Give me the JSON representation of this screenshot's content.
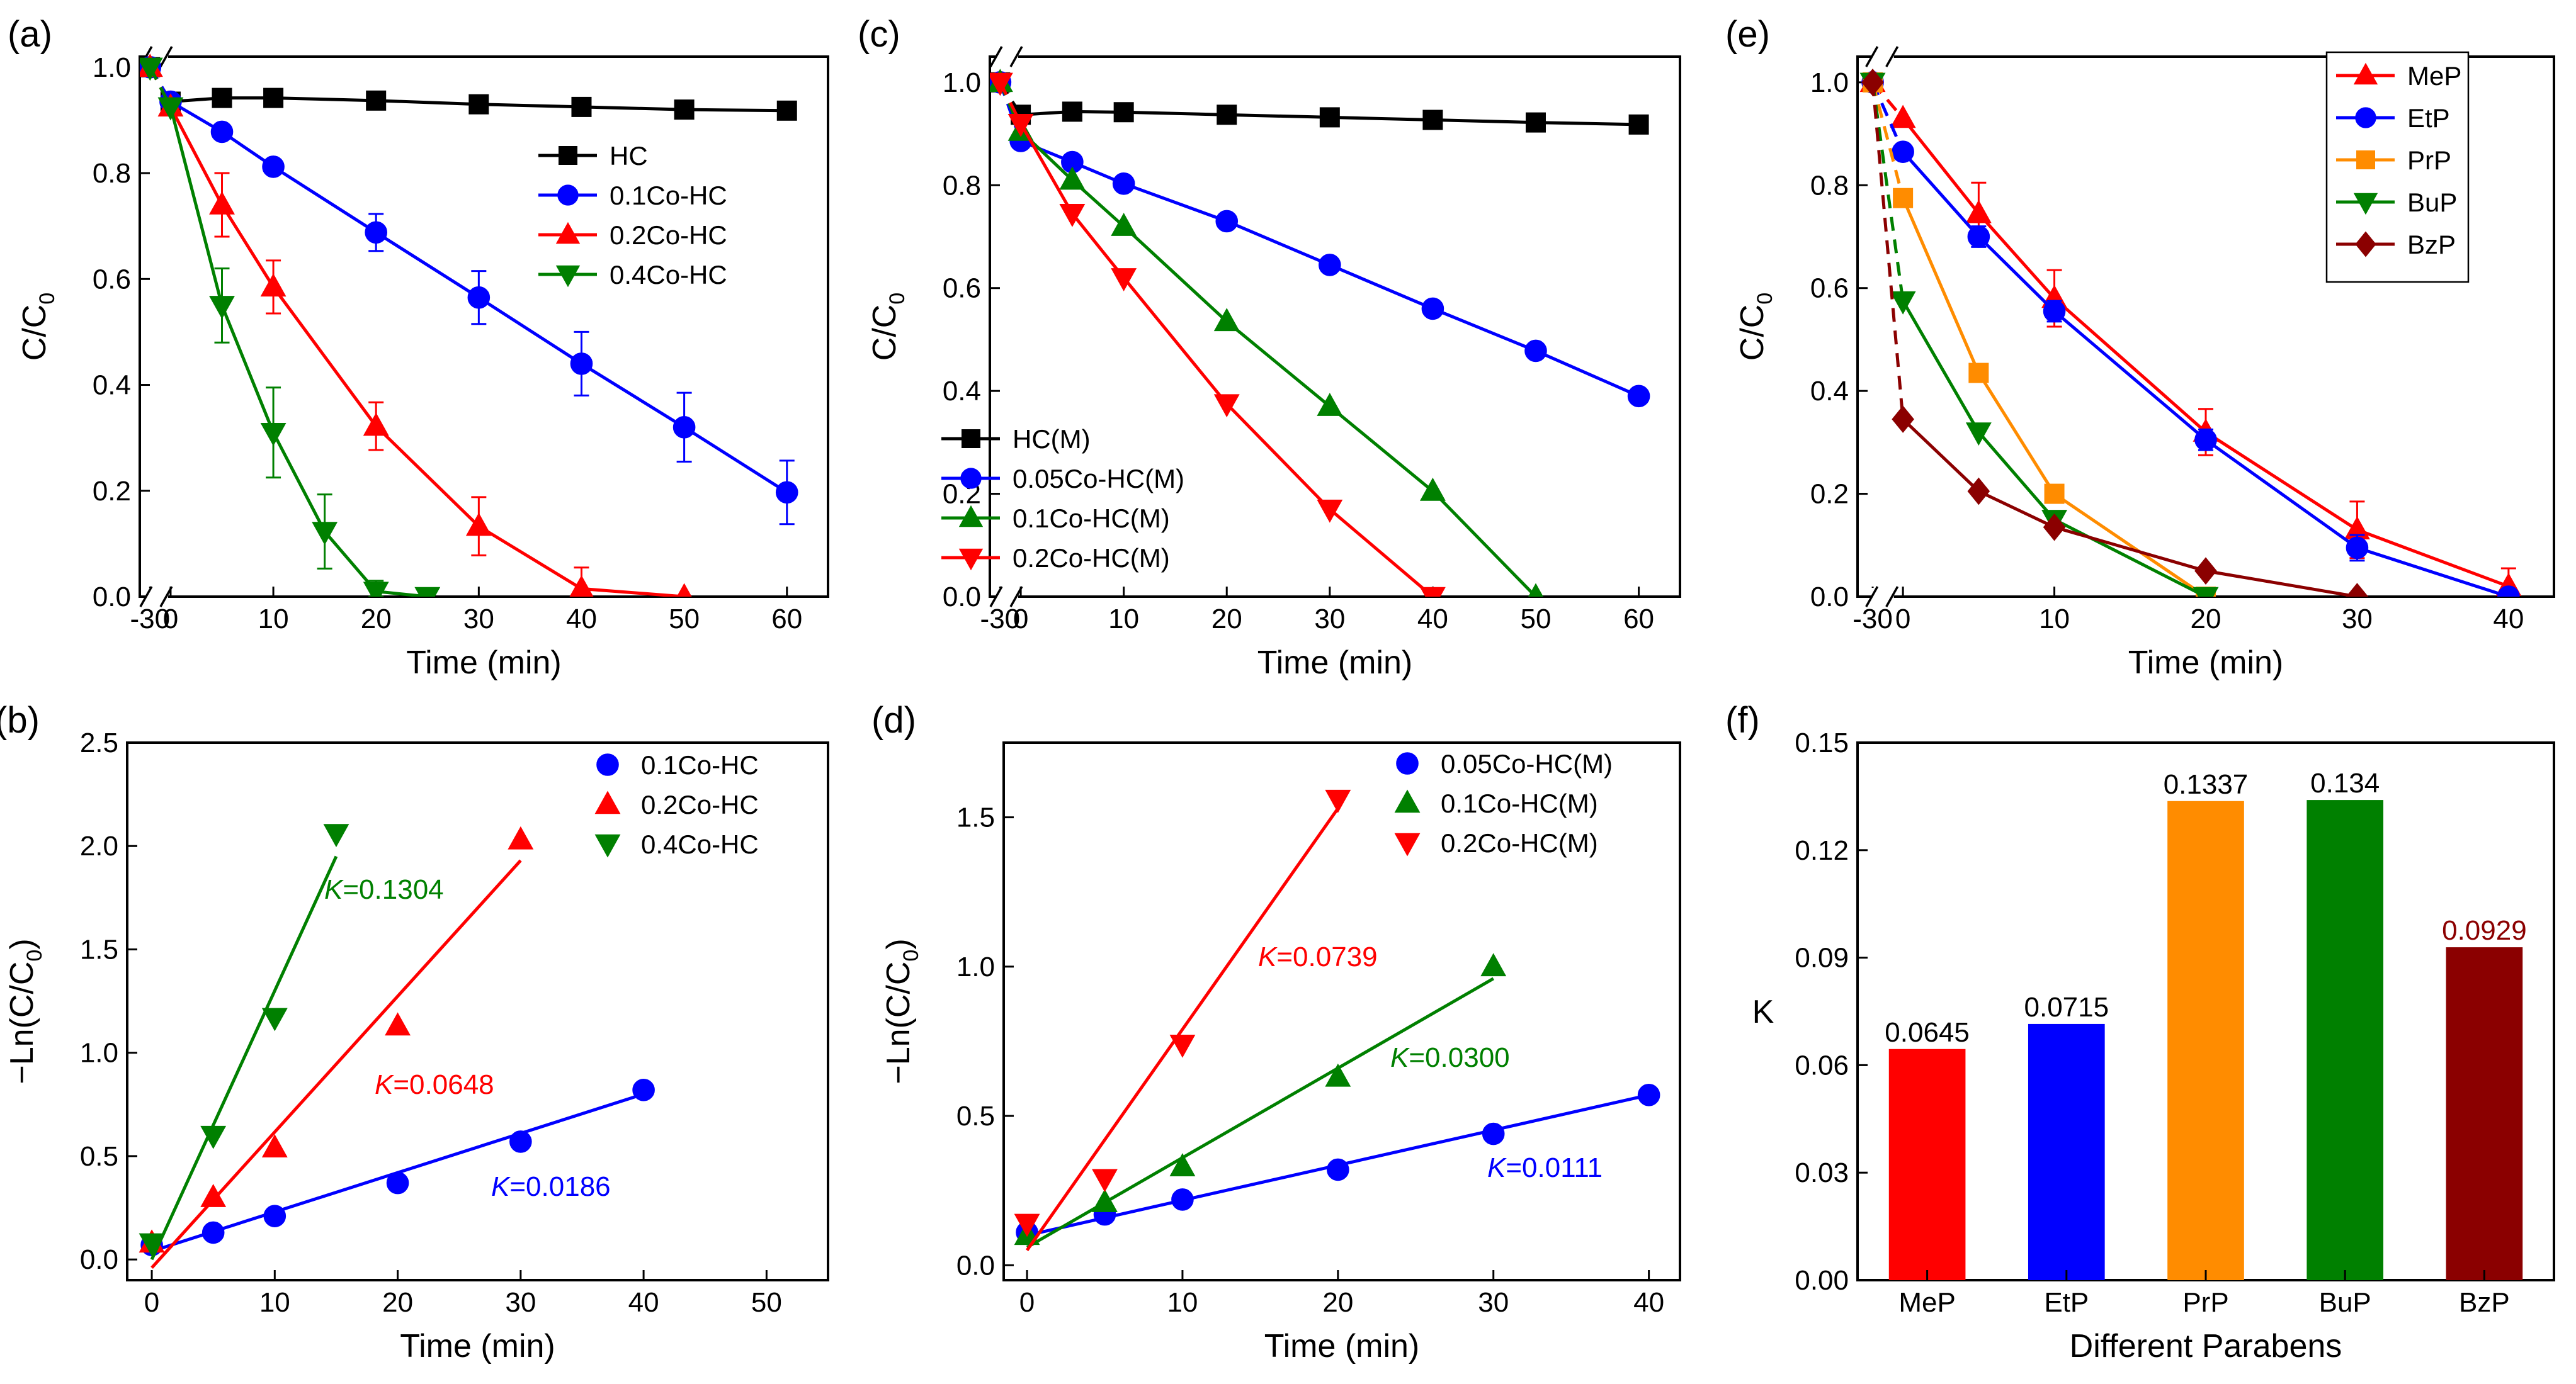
{
  "chart_data": [
    {
      "panel": "(a)",
      "type": "line",
      "xlabel": "Time (min)",
      "ylabel": "C/C",
      "ylabel_sub": "0",
      "xticks": [
        "-30",
        "0",
        "10",
        "20",
        "30",
        "40",
        "50",
        "60"
      ],
      "yticks": [
        "0.0",
        "0.2",
        "0.4",
        "0.6",
        "0.8",
        "1.0"
      ],
      "xlim": [
        -3,
        64
      ],
      "ylim": [
        0,
        1.02
      ],
      "legend": "upper-right",
      "series": [
        {
          "name": "HC",
          "color": "#000000",
          "marker": "square",
          "x": [
            -30,
            0,
            5,
            10,
            20,
            30,
            40,
            50,
            60
          ],
          "y": [
            1.0,
            0.935,
            0.942,
            0.942,
            0.937,
            0.93,
            0.925,
            0.92,
            0.918
          ]
        },
        {
          "name": "0.1Co-HC",
          "color": "#0000ff",
          "marker": "circle",
          "x": [
            -30,
            0,
            5,
            10,
            20,
            30,
            40,
            50,
            60
          ],
          "y": [
            1.0,
            0.935,
            0.878,
            0.812,
            0.688,
            0.565,
            0.44,
            0.32,
            0.197
          ],
          "err": [
            0,
            0,
            0,
            0,
            0.035,
            0.05,
            0.06,
            0.065,
            0.06
          ]
        },
        {
          "name": "0.2Co-HC",
          "color": "#ff0000",
          "marker": "triangle-up",
          "x": [
            -30,
            0,
            5,
            10,
            20,
            30,
            40,
            50
          ],
          "y": [
            1.0,
            0.925,
            0.74,
            0.585,
            0.322,
            0.133,
            0.015,
            0.0
          ],
          "err": [
            0,
            0,
            0.06,
            0.05,
            0.045,
            0.055,
            0.04,
            0
          ]
        },
        {
          "name": "0.4Co-HC",
          "color": "#008000",
          "marker": "triangle-down",
          "x": [
            -30,
            0,
            5,
            10,
            15,
            20,
            25
          ],
          "y": [
            1.0,
            0.925,
            0.55,
            0.31,
            0.123,
            0.01,
            0.0
          ],
          "err": [
            0,
            0,
            0.07,
            0.085,
            0.07,
            0.02,
            0
          ]
        }
      ]
    },
    {
      "panel": "(b)",
      "type": "scatter",
      "xlabel": "Time (min)",
      "ylabel": "−Ln(C/C",
      "ylabel_sub": "0",
      "ylabel_end": ")",
      "xticks": [
        "0",
        "10",
        "20",
        "30",
        "40",
        "50"
      ],
      "yticks": [
        "0.0",
        "0.5",
        "1.0",
        "1.5",
        "2.0",
        "2.5"
      ],
      "xlim": [
        -2,
        55
      ],
      "ylim": [
        -0.1,
        2.5
      ],
      "legend": "upper-right",
      "series": [
        {
          "name": "0.1Co-HC",
          "color": "#0000ff",
          "marker": "circle",
          "x": [
            0,
            5,
            10,
            20,
            30,
            40
          ],
          "y": [
            0.07,
            0.13,
            0.21,
            0.37,
            0.57,
            0.82
          ],
          "fit": [
            [
              0,
              0.04
            ],
            [
              40,
              0.8
            ]
          ],
          "label": "K=0.0186"
        },
        {
          "name": "0.2Co-HC",
          "color": "#ff0000",
          "marker": "triangle-up",
          "x": [
            0,
            5,
            10,
            20,
            30
          ],
          "y": [
            0.08,
            0.3,
            0.54,
            1.13,
            2.03
          ],
          "fit": [
            [
              0,
              -0.04
            ],
            [
              30,
              1.93
            ]
          ],
          "label": "K=0.0648"
        },
        {
          "name": "0.4Co-HC",
          "color": "#008000",
          "marker": "triangle-down",
          "x": [
            0,
            5,
            10,
            15
          ],
          "y": [
            0.08,
            0.6,
            1.17,
            2.06
          ],
          "fit": [
            [
              0,
              0.0
            ],
            [
              15,
              1.95
            ]
          ],
          "label": "K=0.1304"
        }
      ]
    },
    {
      "panel": "(c)",
      "type": "line",
      "xlabel": "Time (min)",
      "ylabel": "C/C",
      "ylabel_sub": "0",
      "xticks": [
        "-30",
        "0",
        "10",
        "20",
        "30",
        "40",
        "50",
        "60"
      ],
      "yticks": [
        "0.0",
        "0.2",
        "0.4",
        "0.6",
        "0.8",
        "1.0"
      ],
      "xlim": [
        -3,
        64
      ],
      "ylim": [
        0,
        1.05
      ],
      "legend": "lower-left",
      "series": [
        {
          "name": "HC(M)",
          "color": "#000000",
          "marker": "square",
          "x": [
            -30,
            0,
            5,
            10,
            20,
            30,
            40,
            50,
            60
          ],
          "y": [
            1.0,
            0.937,
            0.943,
            0.942,
            0.937,
            0.932,
            0.927,
            0.922,
            0.918
          ]
        },
        {
          "name": "0.05Co-HC(M)",
          "color": "#0000ff",
          "marker": "circle",
          "x": [
            -30,
            0,
            5,
            10,
            20,
            30,
            40,
            50,
            60
          ],
          "y": [
            1.0,
            0.886,
            0.845,
            0.803,
            0.73,
            0.645,
            0.56,
            0.478,
            0.39
          ]
        },
        {
          "name": "0.1Co-HC(M)",
          "color": "#008000",
          "marker": "triangle-up",
          "x": [
            -30,
            0,
            5,
            10,
            20,
            30,
            40,
            50
          ],
          "y": [
            1.0,
            0.905,
            0.81,
            0.72,
            0.535,
            0.37,
            0.205,
            0.0
          ]
        },
        {
          "name": "0.2Co-HC(M)",
          "color": "#ff0000",
          "marker": "triangle-down",
          "x": [
            -30,
            0,
            5,
            10,
            20,
            30,
            40
          ],
          "y": [
            1.0,
            0.92,
            0.745,
            0.62,
            0.375,
            0.17,
            0.0
          ]
        }
      ]
    },
    {
      "panel": "(d)",
      "type": "scatter",
      "xlabel": "Time (min)",
      "ylabel": "−Ln(C/C",
      "ylabel_sub": "0",
      "ylabel_end": ")",
      "xticks": [
        "0",
        "10",
        "20",
        "30",
        "40"
      ],
      "yticks": [
        "0.0",
        "0.5",
        "1.0",
        "1.5"
      ],
      "xlim": [
        -1.5,
        42
      ],
      "ylim": [
        -0.05,
        1.75
      ],
      "legend": "upper-right",
      "series": [
        {
          "name": "0.05Co-HC(M)",
          "color": "#0000ff",
          "marker": "circle",
          "x": [
            0,
            5,
            10,
            20,
            30,
            40
          ],
          "y": [
            0.11,
            0.17,
            0.22,
            0.32,
            0.44,
            0.57
          ],
          "fit": [
            [
              0,
              0.1
            ],
            [
              40,
              0.57
            ]
          ],
          "label": "K=0.0111"
        },
        {
          "name": "0.1Co-HC(M)",
          "color": "#008000",
          "marker": "triangle-up",
          "x": [
            0,
            5,
            10,
            20,
            30
          ],
          "y": [
            0.1,
            0.21,
            0.33,
            0.63,
            1.0
          ],
          "fit": [
            [
              0,
              0.06
            ],
            [
              30,
              0.96
            ]
          ],
          "label": "K=0.0300"
        },
        {
          "name": "0.2Co-HC(M)",
          "color": "#ff0000",
          "marker": "triangle-down",
          "x": [
            0,
            5,
            10,
            20
          ],
          "y": [
            0.14,
            0.29,
            0.74,
            1.56
          ],
          "fit": [
            [
              0,
              0.05
            ],
            [
              20,
              1.53
            ]
          ],
          "label": "K=0.0739"
        }
      ]
    },
    {
      "panel": "(e)",
      "type": "line",
      "xlabel": "Time (min)",
      "ylabel": "C/C",
      "ylabel_sub": "0",
      "xticks": [
        "-30",
        "0",
        "10",
        "20",
        "30",
        "40"
      ],
      "yticks": [
        "0.0",
        "0.2",
        "0.4",
        "0.6",
        "0.8",
        "1.0"
      ],
      "xlim": [
        -3,
        43
      ],
      "ylim": [
        0,
        1.05
      ],
      "legend": "upper-right",
      "series": [
        {
          "name": "MeP",
          "color": "#ff0000",
          "marker": "triangle-up",
          "x": [
            -30,
            0,
            5,
            10,
            20,
            30,
            40
          ],
          "y": [
            1.0,
            0.93,
            0.745,
            0.58,
            0.32,
            0.13,
            0.02
          ],
          "err": [
            0,
            0,
            0.06,
            0.055,
            0.045,
            0.055,
            0.035
          ]
        },
        {
          "name": "EtP",
          "color": "#0000ff",
          "marker": "circle",
          "x": [
            -30,
            0,
            5,
            10,
            20,
            30,
            40
          ],
          "y": [
            1.0,
            0.865,
            0.7,
            0.555,
            0.305,
            0.095,
            0.0
          ],
          "err": [
            0,
            0,
            0.02,
            0.02,
            0.02,
            0.025,
            0
          ]
        },
        {
          "name": "PrP",
          "color": "#ff8c00",
          "marker": "square",
          "x": [
            -30,
            0,
            5,
            10,
            20
          ],
          "y": [
            1.0,
            0.775,
            0.435,
            0.2,
            0.0
          ]
        },
        {
          "name": "BuP",
          "color": "#008000",
          "marker": "triangle-down",
          "x": [
            -30,
            0,
            5,
            10,
            20
          ],
          "y": [
            1.0,
            0.575,
            0.32,
            0.15,
            0.0
          ]
        },
        {
          "name": "BzP",
          "color": "#8b0000",
          "marker": "diamond",
          "x": [
            -30,
            0,
            5,
            10,
            20,
            30
          ],
          "y": [
            1.0,
            0.345,
            0.205,
            0.135,
            0.05,
            0.0
          ]
        }
      ]
    },
    {
      "panel": "(f)",
      "type": "bar",
      "xlabel": "Different Parabens",
      "ylabel": "K",
      "categories": [
        "MeP",
        "EtP",
        "PrP",
        "BuP",
        "BzP"
      ],
      "values": [
        0.0645,
        0.0715,
        0.1337,
        0.134,
        0.0929
      ],
      "value_labels": [
        "0.0645",
        "0.0715",
        "0.1337",
        "0.134",
        "0.0929"
      ],
      "colors": [
        "#ff0000",
        "#0000ff",
        "#ff8c00",
        "#008000",
        "#8b0000"
      ],
      "label_colors": [
        "#000000",
        "#000000",
        "#000000",
        "#000000",
        "#8b0000"
      ],
      "yticks": [
        "0.00",
        "0.03",
        "0.06",
        "0.09",
        "0.12",
        "0.15"
      ],
      "ylim": [
        0,
        0.15
      ]
    }
  ]
}
